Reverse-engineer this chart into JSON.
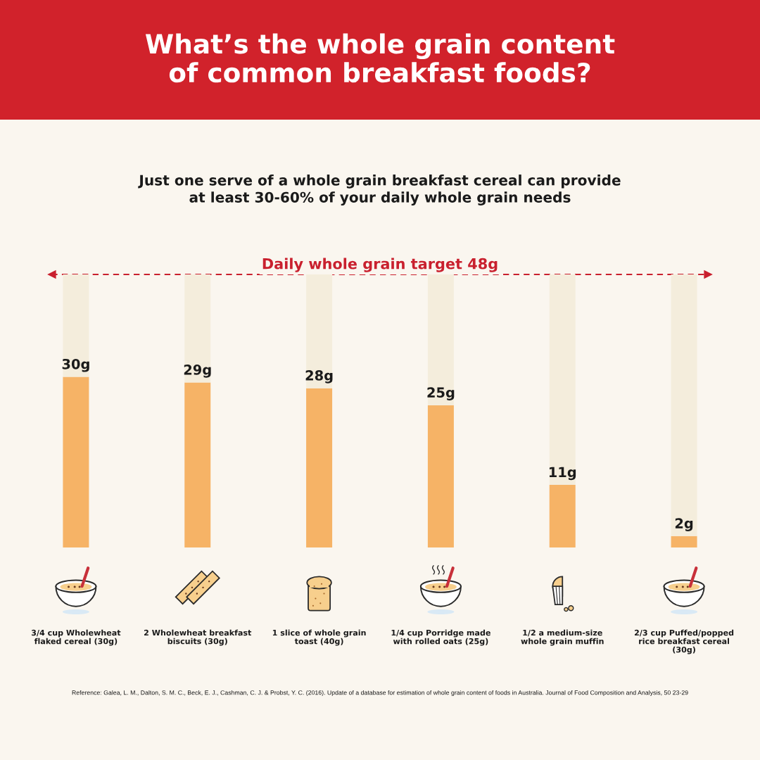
{
  "chart_data": {
    "type": "bar",
    "title": "What’s the whole grain content\nof common breakfast foods?",
    "subtitle": "Just one serve of a whole grain breakfast cereal can provide\nat least 30-60% of your daily whole grain needs",
    "categories": [
      "3/4 cup Wholewheat\nflaked cereal (30g)",
      "2 Wholewheat breakfast\nbiscuits (30g)",
      "1 slice of whole grain\ntoast (40g)",
      "1/4 cup Porridge made\nwith rolled oats (25g)",
      "1/2 a medium-size\nwhole grain muffin",
      "2/3 cup Puffed/popped\nrice breakfast cereal\n(30g)"
    ],
    "stacked": true,
    "series": [
      {
        "color": "#f6b366",
        "values": [
          30,
          29,
          28,
          25,
          11,
          2
        ],
        "value_labels": [
          "30g",
          "29g",
          "28g",
          "25g",
          "11g",
          "2g"
        ]
      },
      {
        "color": "#f4eddc",
        "values": [
          18,
          19,
          20,
          23,
          37,
          46
        ]
      }
    ],
    "ylim": [
      0,
      48
    ],
    "tick_labels": "x",
    "ref_lines": [
      {
        "axis": "y",
        "value": 48,
        "label": "Daily whole grain target 48g",
        "color": "#c9202e",
        "line_style": "dashed"
      }
    ],
    "annotations": [
      "Reference: Galea, L. M., Dalton, S. M. C., Beck, E. J., Cashman, C. J. & Probst, Y. C. (2016). Update of a database for estimation of whole grain content of foods in Australia. Journal of Food Composition and Analysis, 50 23-29"
    ]
  }
}
